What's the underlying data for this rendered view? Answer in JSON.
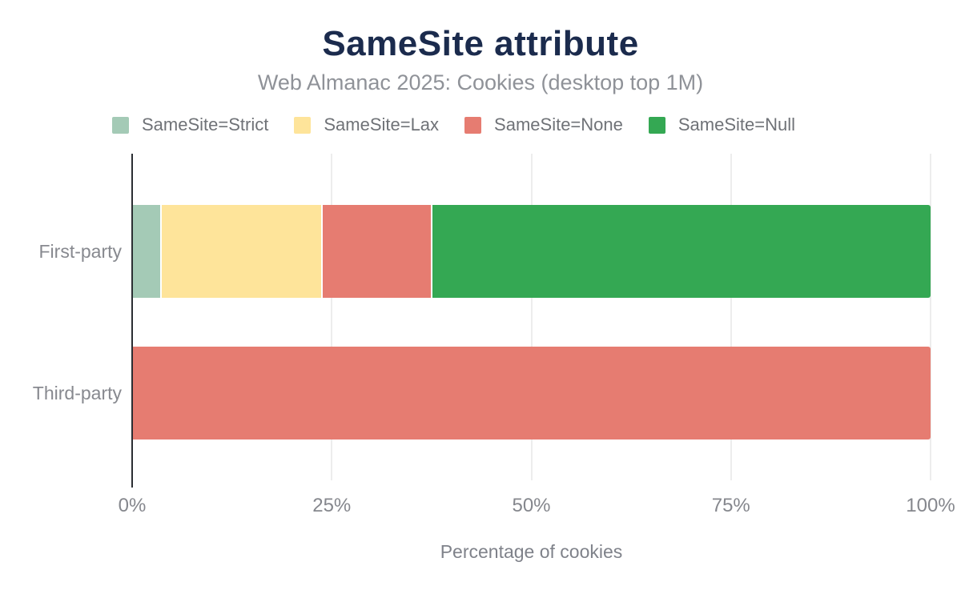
{
  "chart_data": {
    "type": "bar",
    "orientation": "horizontal",
    "stacked": true,
    "title": "SameSite attribute",
    "subtitle": "Web Almanac 2025: Cookies (desktop top 1M)",
    "xlabel": "Percentage of cookies",
    "categories": [
      "First-party",
      "Third-party"
    ],
    "series": [
      {
        "name": "SameSite=Strict",
        "color": "#a4cab6",
        "values": [
          3.4,
          0
        ]
      },
      {
        "name": "SameSite=Lax",
        "color": "#fee49a",
        "values": [
          20.2,
          0
        ]
      },
      {
        "name": "SameSite=None",
        "color": "#e67c71",
        "values": [
          13.8,
          100
        ]
      },
      {
        "name": "SameSite=Null",
        "color": "#34a853",
        "values": [
          62.6,
          0
        ]
      }
    ],
    "x_ticks": [
      "0%",
      "25%",
      "50%",
      "75%",
      "100%"
    ],
    "x_tick_values": [
      0,
      25,
      50,
      75,
      100
    ],
    "xlim": [
      0,
      100
    ],
    "grid": true,
    "legend_position": "top",
    "colors": {
      "title": "#1b2b4d",
      "subtitle": "#8f9298",
      "axis_line": "#2b2e33",
      "gridline": "#ededed",
      "tick_text": "#85878d"
    }
  }
}
